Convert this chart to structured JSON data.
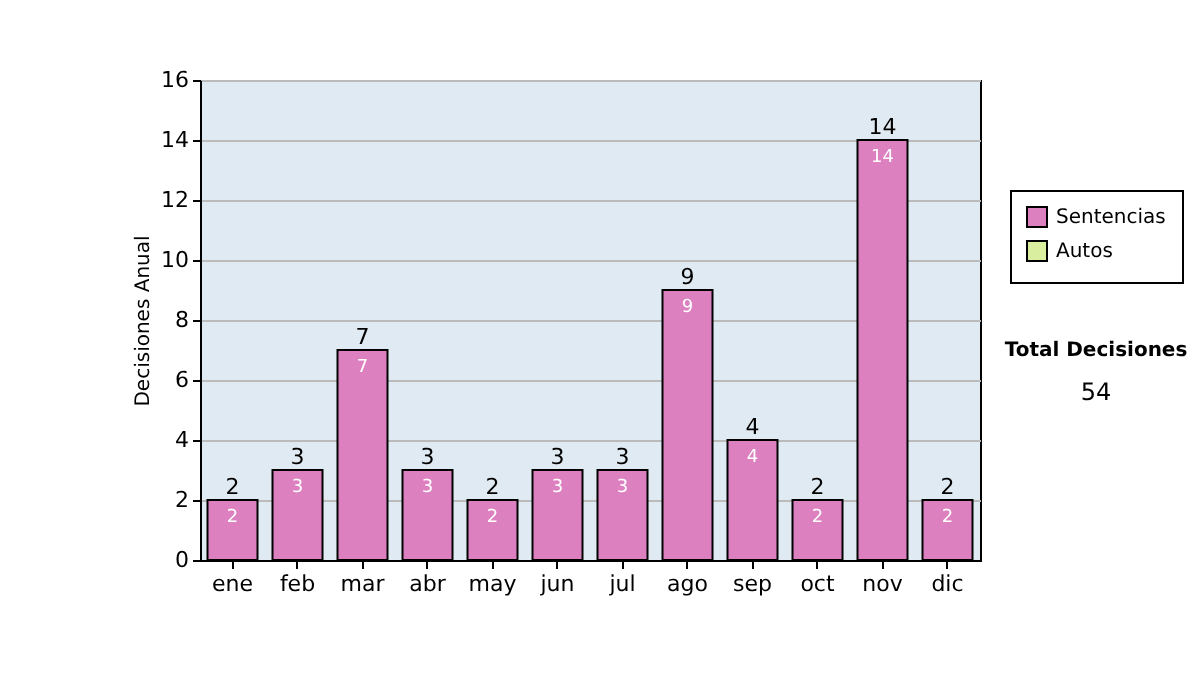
{
  "chart_data": {
    "type": "bar",
    "ylabel": "Decisiones Anual",
    "categories": [
      "ene",
      "feb",
      "mar",
      "abr",
      "may",
      "jun",
      "jul",
      "ago",
      "sep",
      "oct",
      "nov",
      "dic"
    ],
    "series": [
      {
        "name": "Sentencias",
        "color": "#dd80bf",
        "values": [
          2,
          3,
          7,
          3,
          2,
          3,
          3,
          9,
          4,
          2,
          14,
          2
        ]
      },
      {
        "name": "Autos",
        "color": "#d9ee9f",
        "values": [
          null,
          null,
          null,
          null,
          null,
          null,
          null,
          null,
          null,
          null,
          null,
          null
        ]
      }
    ],
    "stacked": true,
    "totals": [
      "2",
      "3",
      "7",
      "3",
      "2",
      "3",
      "3",
      "9",
      "4",
      "2",
      "14",
      "2"
    ],
    "data_labels": true,
    "ylim": [
      0,
      16
    ],
    "yticks": [
      0,
      2,
      4,
      6,
      8,
      10,
      12,
      14,
      16
    ],
    "grid": "y",
    "legend": "right",
    "annotations": [
      "Total Decisiones",
      "54"
    ]
  }
}
